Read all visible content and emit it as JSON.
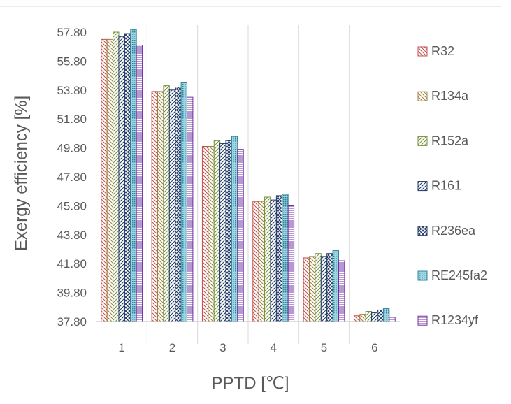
{
  "chart_data": {
    "type": "bar",
    "title": "",
    "xlabel": "PPTD [℃]",
    "ylabel": "Exergy efficiency  [%]",
    "categories": [
      "1",
      "2",
      "3",
      "4",
      "5",
      "6"
    ],
    "ylim": [
      37.8,
      57.8
    ],
    "yticks": [
      "37.80",
      "39.80",
      "41.80",
      "43.80",
      "45.80",
      "47.80",
      "49.80",
      "51.80",
      "53.80",
      "55.80",
      "57.80"
    ],
    "grid": "vertical separators between categories",
    "legend_position": "right",
    "series": [
      {
        "name": "R32",
        "color": "#c0504d",
        "pattern": "diag-down",
        "values": [
          57.3,
          53.7,
          49.9,
          46.1,
          42.2,
          38.2
        ]
      },
      {
        "name": "R134a",
        "color": "#a08040",
        "pattern": "diag-down",
        "values": [
          57.3,
          53.7,
          49.9,
          46.1,
          42.3,
          38.3
        ]
      },
      {
        "name": "R152a",
        "color": "#76933c",
        "pattern": "diag-up",
        "values": [
          57.8,
          54.1,
          50.3,
          46.4,
          42.5,
          38.5
        ]
      },
      {
        "name": "R161",
        "color": "#1f3864",
        "pattern": "diag-up",
        "values": [
          57.5,
          53.8,
          50.1,
          46.2,
          42.3,
          38.4
        ]
      },
      {
        "name": "R236ea",
        "color": "#1f3864",
        "pattern": "cross",
        "values": [
          57.7,
          54.0,
          50.3,
          46.5,
          42.5,
          38.6
        ]
      },
      {
        "name": "RE245fa2",
        "color": "#31849b",
        "pattern": "dots",
        "values": [
          58.0,
          54.3,
          50.6,
          46.6,
          42.7,
          38.7
        ]
      },
      {
        "name": "R1234yf",
        "color": "#7030a0",
        "pattern": "hlines",
        "values": [
          56.9,
          53.3,
          49.7,
          45.8,
          42.0,
          38.1
        ]
      }
    ]
  }
}
